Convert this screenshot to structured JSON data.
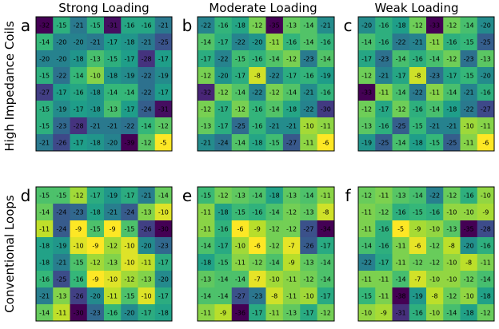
{
  "figure": {
    "column_titles": [
      "Strong Loading",
      "Moderate Loading",
      "Weak Loading"
    ],
    "row_labels": [
      "High Impedance Coils",
      "Conventional Loops"
    ]
  },
  "colormap": {
    "name": "viridis",
    "stops": [
      "#440154",
      "#482878",
      "#3e4989",
      "#31688e",
      "#26828e",
      "#1f9e89",
      "#35b779",
      "#6ece58",
      "#b5de2b",
      "#fde725"
    ]
  },
  "chart_data": [
    {
      "type": "heatmap",
      "panel": "a",
      "row": "High Impedance Coils",
      "column": "Strong Loading",
      "vmin": -32,
      "vmax": -5,
      "values": [
        [
          -32,
          -15,
          -21,
          -15,
          -31,
          -16,
          -16,
          -21
        ],
        [
          -14,
          -20,
          -20,
          -21,
          -17,
          -18,
          -21,
          -25
        ],
        [
          -20,
          -20,
          -18,
          -13,
          -15,
          -17,
          -28,
          -17
        ],
        [
          -15,
          -22,
          -14,
          -10,
          -18,
          -19,
          -22,
          -19
        ],
        [
          -27,
          -17,
          -16,
          -18,
          -14,
          -14,
          -22,
          -17
        ],
        [
          -15,
          -19,
          -17,
          -18,
          -13,
          -17,
          -24,
          -31
        ],
        [
          -15,
          -23,
          -28,
          -21,
          -21,
          -22,
          -14,
          -12
        ],
        [
          -21,
          -26,
          -17,
          -18,
          -20,
          -39,
          -12,
          -5
        ]
      ]
    },
    {
      "type": "heatmap",
      "panel": "b",
      "row": "High Impedance Coils",
      "column": "Moderate Loading",
      "vmin": -35,
      "vmax": -6,
      "values": [
        [
          -22,
          -16,
          -18,
          -12,
          -35,
          -13,
          -14,
          -21
        ],
        [
          -14,
          -17,
          -22,
          -20,
          -11,
          -16,
          -14,
          -16
        ],
        [
          -17,
          -22,
          -15,
          -16,
          -14,
          -12,
          -23,
          -14
        ],
        [
          -12,
          -20,
          -17,
          -8,
          -22,
          -17,
          -16,
          -19
        ],
        [
          -32,
          -12,
          -14,
          -22,
          -12,
          -14,
          -21,
          -16
        ],
        [
          -12,
          -17,
          -12,
          -16,
          -14,
          -18,
          -22,
          -30
        ],
        [
          -13,
          -17,
          -25,
          -16,
          -21,
          -21,
          -10,
          -11
        ],
        [
          -21,
          -24,
          -14,
          -18,
          -15,
          -27,
          -11,
          -6
        ]
      ]
    },
    {
      "type": "heatmap",
      "panel": "c",
      "row": "High Impedance Coils",
      "column": "Weak Loading",
      "vmin": -33,
      "vmax": -6,
      "values": [
        [
          -20,
          -16,
          -18,
          -12,
          -33,
          -12,
          -14,
          -20
        ],
        [
          -14,
          -16,
          -22,
          -21,
          -11,
          -16,
          -15,
          -25
        ],
        [
          -17,
          -23,
          -14,
          -16,
          -14,
          -12,
          -23,
          -13
        ],
        [
          -12,
          -21,
          -17,
          -8,
          -23,
          -17,
          -15,
          -20
        ],
        [
          -33,
          -11,
          -14,
          -22,
          -11,
          -14,
          -21,
          -16
        ],
        [
          -12,
          -17,
          -12,
          -16,
          -14,
          -18,
          -22,
          -27
        ],
        [
          -13,
          -16,
          -25,
          -15,
          -21,
          -21,
          -10,
          -11
        ],
        [
          -19,
          -25,
          -14,
          -18,
          -15,
          -25,
          -11,
          -6
        ]
      ]
    },
    {
      "type": "heatmap",
      "panel": "d",
      "row": "Conventional Loops",
      "column": "Strong Loading",
      "vmin": -30,
      "vmax": -9,
      "values": [
        [
          -15,
          -15,
          -12,
          -17,
          -19,
          -17,
          -21,
          -14
        ],
        [
          -14,
          -24,
          -23,
          -18,
          -21,
          -24,
          -13,
          -10
        ],
        [
          -11,
          -24,
          -9,
          -15,
          -9,
          -15,
          -26,
          -30
        ],
        [
          -18,
          -19,
          -10,
          -9,
          -12,
          -10,
          -20,
          -23
        ],
        [
          -18,
          -21,
          -15,
          -12,
          -13,
          -10,
          -11,
          -17
        ],
        [
          -16,
          -25,
          -16,
          -9,
          -10,
          -12,
          -13,
          -20
        ],
        [
          -21,
          -13,
          -26,
          -20,
          -11,
          -15,
          -10,
          -17
        ],
        [
          -14,
          -11,
          -30,
          -23,
          -16,
          -20,
          -17,
          -18
        ]
      ]
    },
    {
      "type": "heatmap",
      "panel": "e",
      "row": "Conventional Loops",
      "column": "Moderate Loading",
      "vmin": -34,
      "vmax": -6,
      "values": [
        [
          -15,
          -12,
          -13,
          -14,
          -18,
          -13,
          -14,
          -11
        ],
        [
          -11,
          -18,
          -15,
          -16,
          -14,
          -12,
          -13,
          -8
        ],
        [
          -11,
          -16,
          -6,
          -9,
          -12,
          -12,
          -27,
          -34
        ],
        [
          -14,
          -17,
          -10,
          -6,
          -12,
          -7,
          -26,
          -17
        ],
        [
          -18,
          -15,
          -11,
          -12,
          -14,
          -9,
          -13,
          -14
        ],
        [
          -13,
          -14,
          -14,
          -7,
          -10,
          -11,
          -12,
          -14
        ],
        [
          -14,
          -14,
          -27,
          -23,
          -8,
          -11,
          -10,
          -17
        ],
        [
          -11,
          -9,
          -36,
          -17,
          -11,
          -13,
          -17,
          -12
        ]
      ]
    },
    {
      "type": "heatmap",
      "panel": "f",
      "row": "Conventional Loops",
      "column": "Weak Loading",
      "vmin": -35,
      "vmax": -5,
      "values": [
        [
          -12,
          -11,
          -13,
          -14,
          -22,
          -12,
          -16,
          -10
        ],
        [
          -11,
          -12,
          -16,
          -15,
          -16,
          -10,
          -10,
          -9
        ],
        [
          -11,
          -16,
          -5,
          -9,
          -10,
          -13,
          -35,
          -28
        ],
        [
          -14,
          -16,
          -11,
          -6,
          -12,
          -8,
          -20,
          -16
        ],
        [
          -22,
          -17,
          -11,
          -12,
          -12,
          -10,
          -8,
          -11
        ],
        [
          -11,
          -11,
          -14,
          -7,
          -10,
          -10,
          -12,
          -14
        ],
        [
          -15,
          -11,
          -38,
          -19,
          -8,
          -12,
          -10,
          -18
        ],
        [
          -10,
          -9,
          -31,
          -16,
          -10,
          -14,
          -18,
          -12
        ]
      ]
    }
  ]
}
